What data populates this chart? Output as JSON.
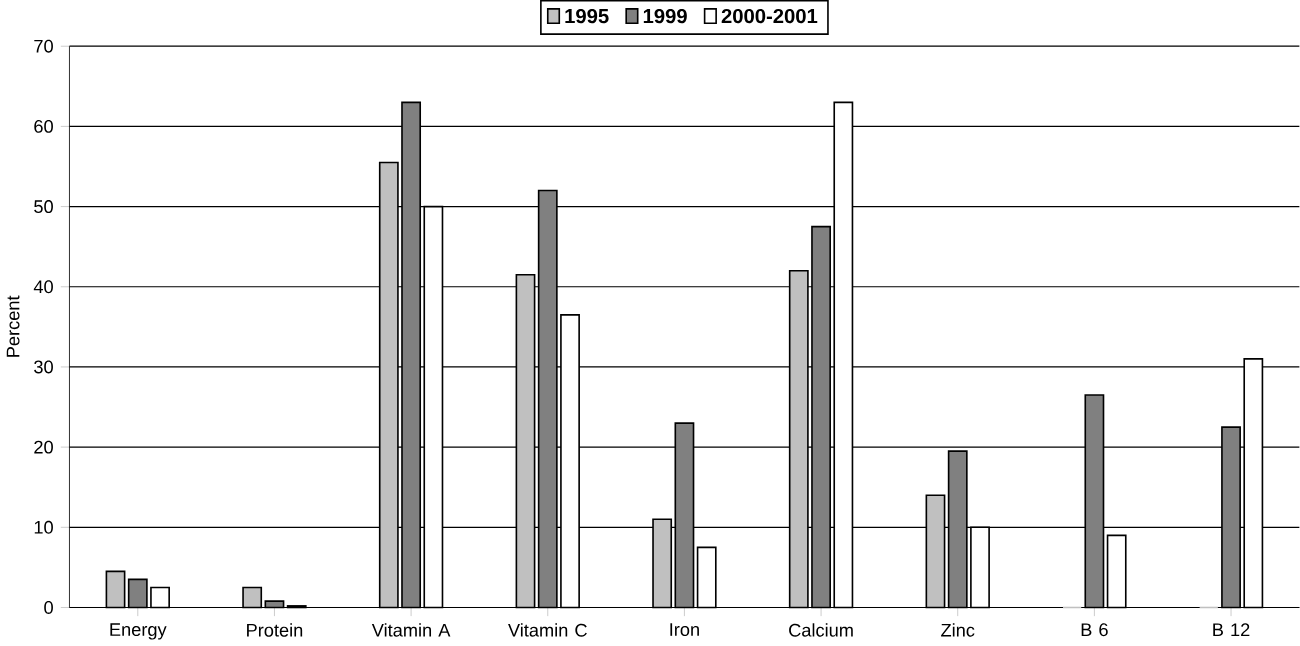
{
  "chart_data": {
    "type": "bar",
    "ylabel": "Percent",
    "categories": [
      "Energy",
      "Protein",
      "Vitamin A",
      "Vitamin C",
      "Iron",
      "Calcium",
      "Zinc",
      "B 6",
      "B 12"
    ],
    "series": [
      {
        "name": "1995",
        "color": "#c0c0c0",
        "values": [
          4.5,
          2.5,
          55.5,
          41.5,
          11,
          42,
          14,
          0,
          0
        ]
      },
      {
        "name": "1999",
        "color": "#808080",
        "values": [
          3.5,
          0.8,
          63,
          52,
          23,
          47.5,
          19.5,
          26.5,
          22.5
        ]
      },
      {
        "name": "2000-2001",
        "color": "#ffffff",
        "values": [
          2.5,
          0.2,
          50,
          36.5,
          7.5,
          63,
          10,
          9,
          31
        ]
      }
    ],
    "ylim": [
      0,
      70
    ],
    "yticks": [
      0,
      10,
      20,
      30,
      40,
      50,
      60,
      70
    ],
    "grid": "y",
    "legend": "top"
  }
}
